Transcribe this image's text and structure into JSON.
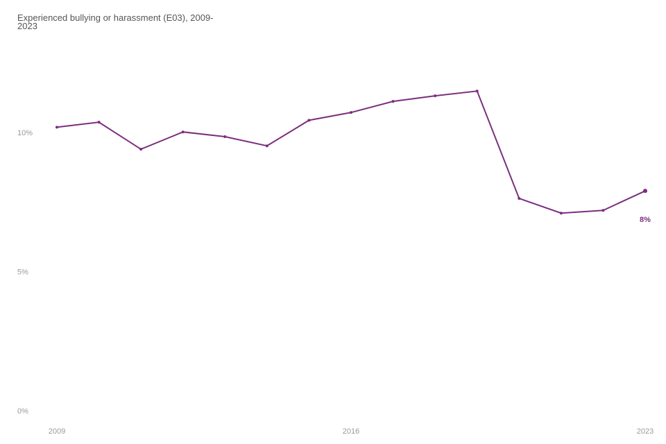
{
  "chart_data": {
    "type": "line",
    "title": "Experienced bullying or harassment (E03), 2009-2023",
    "x": [
      2009,
      2010,
      2011,
      2012,
      2013,
      2014,
      2015,
      2016,
      2017,
      2018,
      2019,
      2020,
      2021,
      2022,
      2023
    ],
    "series": [
      {
        "color": "#7b2d7e",
        "values": [
          10.22,
          10.4,
          9.43,
          10.05,
          9.88,
          9.55,
          10.47,
          10.75,
          11.15,
          11.35,
          11.52,
          7.66,
          7.13,
          7.23,
          7.93
        ],
        "value_labels": [
          null,
          null,
          null,
          null,
          null,
          null,
          null,
          null,
          null,
          null,
          null,
          null,
          null,
          null,
          "8%"
        ]
      }
    ],
    "xlim": [
      2009,
      2023
    ],
    "xticks": [
      2009,
      2016,
      2023
    ],
    "ylim": [
      0,
      12.5
    ],
    "yticks": [
      {
        "value": 0,
        "label": "0%"
      },
      {
        "value": 5,
        "label": "5%"
      },
      {
        "value": 10,
        "label": "10%"
      }
    ],
    "grid": false
  }
}
